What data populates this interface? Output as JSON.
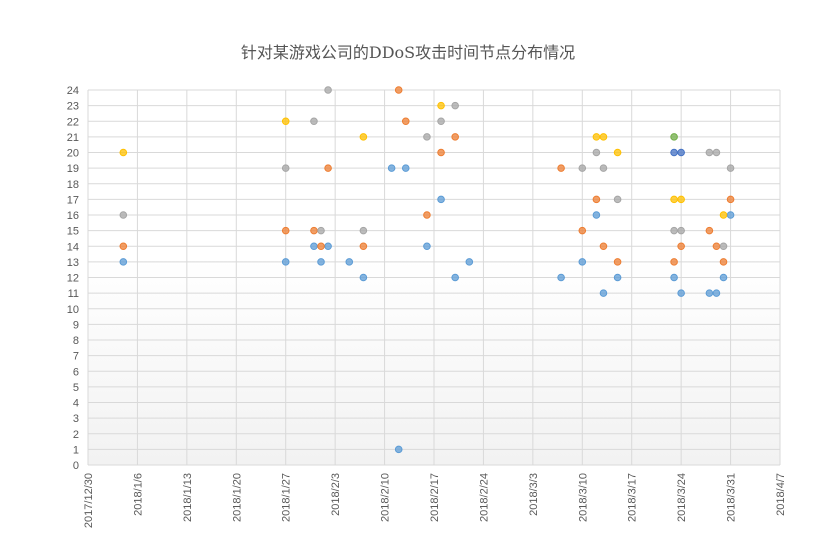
{
  "chart_data": {
    "type": "scatter",
    "title": "针对某游戏公司的DDoS攻击时间节点分布情况",
    "xlabel": "",
    "ylabel": "",
    "x_axis": {
      "type": "date",
      "min": "2017-12-30",
      "max": "2018-04-07",
      "ticks": [
        "2017/12/30",
        "2018/1/6",
        "2018/1/13",
        "2018/1/20",
        "2018/1/27",
        "2018/2/3",
        "2018/2/10",
        "2018/2/17",
        "2018/2/24",
        "2018/3/3",
        "2018/3/10",
        "2018/3/17",
        "2018/3/24",
        "2018/3/31",
        "2018/4/7"
      ]
    },
    "y_axis": {
      "min": 0,
      "max": 24,
      "ticks": [
        0,
        1,
        2,
        3,
        4,
        5,
        6,
        7,
        8,
        9,
        10,
        11,
        12,
        13,
        14,
        15,
        16,
        17,
        18,
        19,
        20,
        21,
        22,
        23,
        24
      ]
    },
    "grid": true,
    "legend": "none",
    "series": [
      {
        "color": "#5b9bd5",
        "points": [
          [
            "2018-01-04",
            13
          ],
          [
            "2018-01-27",
            13
          ],
          [
            "2018-01-31",
            14
          ],
          [
            "2018-02-01",
            13
          ],
          [
            "2018-02-02",
            14
          ],
          [
            "2018-02-05",
            13
          ],
          [
            "2018-02-07",
            12
          ],
          [
            "2018-02-11",
            19
          ],
          [
            "2018-02-12",
            1
          ],
          [
            "2018-02-13",
            19
          ],
          [
            "2018-02-16",
            14
          ],
          [
            "2018-02-18",
            17
          ],
          [
            "2018-02-20",
            12
          ],
          [
            "2018-02-22",
            13
          ],
          [
            "2018-03-07",
            12
          ],
          [
            "2018-03-10",
            13
          ],
          [
            "2018-03-12",
            16
          ],
          [
            "2018-03-13",
            11
          ],
          [
            "2018-03-15",
            12
          ],
          [
            "2018-03-23",
            12
          ],
          [
            "2018-03-24",
            11
          ],
          [
            "2018-03-28",
            11
          ],
          [
            "2018-03-29",
            11
          ],
          [
            "2018-03-30",
            12
          ],
          [
            "2018-03-31",
            16
          ]
        ]
      },
      {
        "color": "#4472c4",
        "points": [
          [
            "2018-03-23",
            20
          ],
          [
            "2018-03-24",
            20
          ]
        ]
      },
      {
        "color": "#ed7d31",
        "points": [
          [
            "2018-01-04",
            14
          ],
          [
            "2018-01-27",
            15
          ],
          [
            "2018-01-31",
            15
          ],
          [
            "2018-02-01",
            14
          ],
          [
            "2018-02-02",
            19
          ],
          [
            "2018-02-07",
            14
          ],
          [
            "2018-02-12",
            24
          ],
          [
            "2018-02-13",
            22
          ],
          [
            "2018-02-16",
            16
          ],
          [
            "2018-02-18",
            20
          ],
          [
            "2018-02-20",
            21
          ],
          [
            "2018-03-07",
            19
          ],
          [
            "2018-03-10",
            15
          ],
          [
            "2018-03-12",
            17
          ],
          [
            "2018-03-13",
            14
          ],
          [
            "2018-03-15",
            13
          ],
          [
            "2018-03-23",
            13
          ],
          [
            "2018-03-24",
            14
          ],
          [
            "2018-03-28",
            15
          ],
          [
            "2018-03-29",
            14
          ],
          [
            "2018-03-30",
            13
          ],
          [
            "2018-03-31",
            17
          ]
        ]
      },
      {
        "color": "#a5a5a5",
        "points": [
          [
            "2018-01-04",
            16
          ],
          [
            "2018-01-27",
            19
          ],
          [
            "2018-01-31",
            22
          ],
          [
            "2018-02-01",
            15
          ],
          [
            "2018-02-02",
            24
          ],
          [
            "2018-02-07",
            15
          ],
          [
            "2018-02-16",
            21
          ],
          [
            "2018-02-18",
            22
          ],
          [
            "2018-02-20",
            23
          ],
          [
            "2018-03-10",
            19
          ],
          [
            "2018-03-12",
            20
          ],
          [
            "2018-03-13",
            19
          ],
          [
            "2018-03-15",
            17
          ],
          [
            "2018-03-23",
            15
          ],
          [
            "2018-03-24",
            15
          ],
          [
            "2018-03-28",
            20
          ],
          [
            "2018-03-29",
            20
          ],
          [
            "2018-03-30",
            14
          ],
          [
            "2018-03-31",
            19
          ]
        ]
      },
      {
        "color": "#ffc000",
        "points": [
          [
            "2018-01-04",
            20
          ],
          [
            "2018-01-27",
            22
          ],
          [
            "2018-02-07",
            21
          ],
          [
            "2018-02-18",
            23
          ],
          [
            "2018-03-12",
            21
          ],
          [
            "2018-03-13",
            21
          ],
          [
            "2018-03-15",
            20
          ],
          [
            "2018-03-23",
            17
          ],
          [
            "2018-03-24",
            17
          ],
          [
            "2018-03-30",
            16
          ]
        ]
      },
      {
        "color": "#70ad47",
        "points": [
          [
            "2018-03-23",
            21
          ]
        ]
      }
    ]
  }
}
